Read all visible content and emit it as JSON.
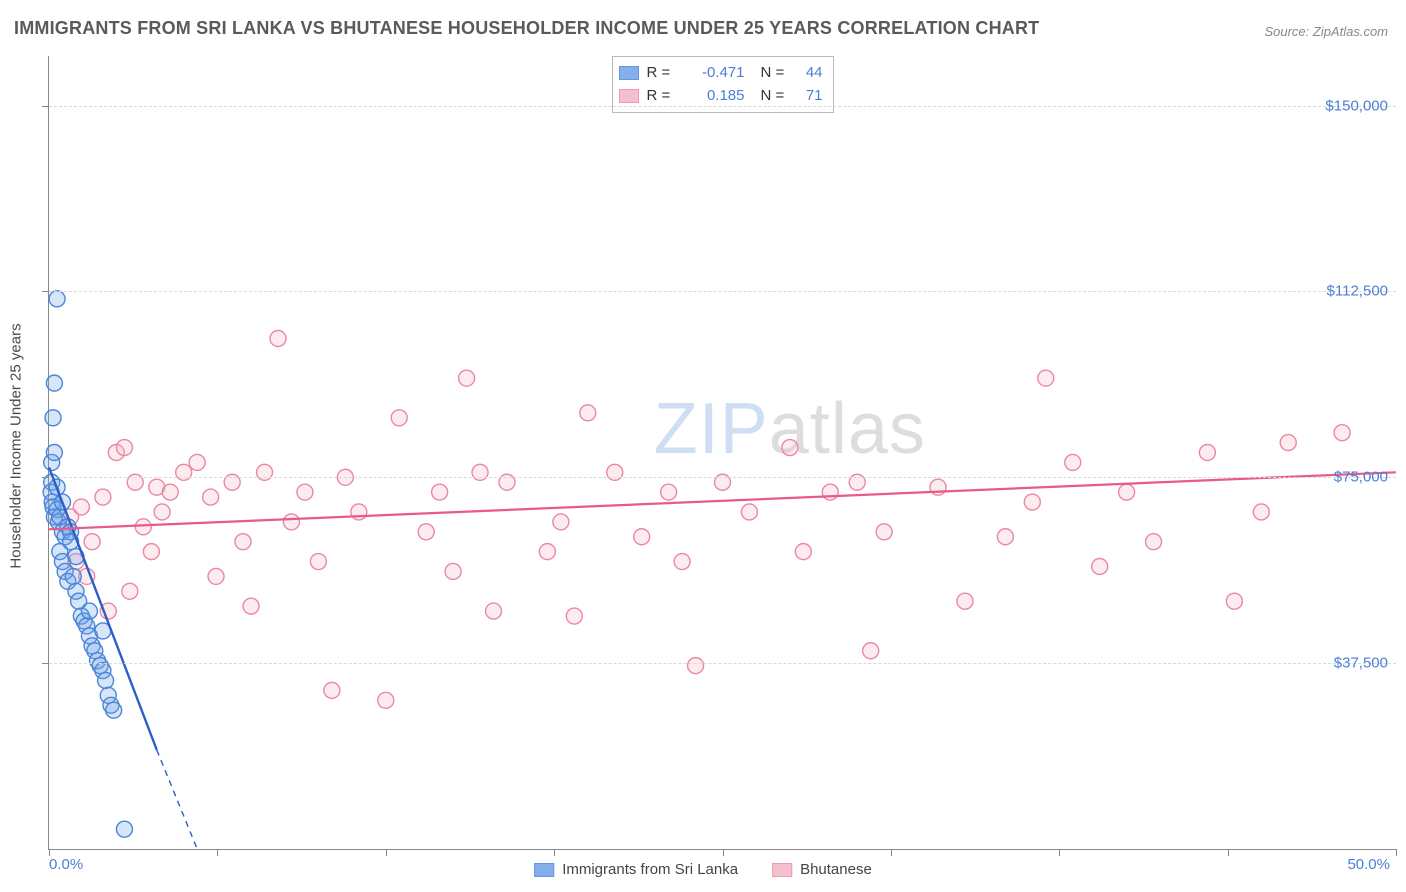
{
  "title": "IMMIGRANTS FROM SRI LANKA VS BHUTANESE HOUSEHOLDER INCOME UNDER 25 YEARS CORRELATION CHART",
  "source": "Source: ZipAtlas.com",
  "yaxis_title": "Householder Income Under 25 years",
  "watermark": {
    "z": "ZIP",
    "rest": "atlas"
  },
  "chart": {
    "type": "scatter",
    "background_color": "#ffffff",
    "grid_color": "#d9d9d9",
    "axis_color": "#888888",
    "label_color": "#4b7ed6",
    "xlim": [
      0,
      50
    ],
    "ylim": [
      0,
      160000
    ],
    "x_tick_step_pct": 12.5,
    "x_tick_count": 8,
    "y_ticks": [
      37500,
      75000,
      112500,
      150000
    ],
    "y_tick_labels": [
      "$37,500",
      "$75,000",
      "$112,500",
      "$150,000"
    ],
    "x_min_label": "0.0%",
    "x_max_label": "50.0%",
    "marker_radius": 8,
    "marker_fill_opacity": 0.28,
    "marker_stroke_width": 1.4,
    "series": [
      {
        "name": "Immigrants from Sri Lanka",
        "color": "#6ea3e8",
        "stroke": "#4a86d8",
        "line_color": "#2b5fc7",
        "line_width": 2.4,
        "R": "-0.471",
        "N": "44",
        "regression": {
          "x1": 0.0,
          "y1": 77000,
          "x2": 4.0,
          "y2": 20000,
          "dashed_to_x": 5.5,
          "dashed_to_y": 0
        },
        "points": [
          [
            0.3,
            111000
          ],
          [
            0.2,
            94000
          ],
          [
            0.15,
            87000
          ],
          [
            0.1,
            78000
          ],
          [
            0.1,
            74000
          ],
          [
            0.08,
            72000
          ],
          [
            0.12,
            70000
          ],
          [
            0.15,
            69000
          ],
          [
            0.2,
            67000
          ],
          [
            0.3,
            68500
          ],
          [
            0.35,
            66000
          ],
          [
            0.4,
            67000
          ],
          [
            0.5,
            64000
          ],
          [
            0.6,
            63000
          ],
          [
            0.7,
            65000
          ],
          [
            0.8,
            64000
          ],
          [
            0.4,
            60000
          ],
          [
            0.5,
            58000
          ],
          [
            0.6,
            56000
          ],
          [
            0.7,
            54000
          ],
          [
            0.9,
            55000
          ],
          [
            1.0,
            52000
          ],
          [
            1.1,
            50000
          ],
          [
            1.2,
            47000
          ],
          [
            1.3,
            46000
          ],
          [
            1.4,
            45000
          ],
          [
            1.5,
            43000
          ],
          [
            1.6,
            41000
          ],
          [
            1.7,
            40000
          ],
          [
            1.8,
            38000
          ],
          [
            1.9,
            37000
          ],
          [
            2.0,
            36000
          ],
          [
            2.1,
            34000
          ],
          [
            2.2,
            31000
          ],
          [
            2.3,
            29000
          ],
          [
            2.4,
            28000
          ],
          [
            2.0,
            44000
          ],
          [
            1.5,
            48000
          ],
          [
            1.0,
            59000
          ],
          [
            0.8,
            62000
          ],
          [
            0.5,
            70000
          ],
          [
            0.3,
            73000
          ],
          [
            0.2,
            80000
          ],
          [
            2.8,
            4000
          ]
        ]
      },
      {
        "name": "Bhutanese",
        "color": "#f4b6c6",
        "stroke": "#ea88a4",
        "line_color": "#e85a88",
        "line_width": 2.2,
        "R": "0.185",
        "N": "71",
        "regression": {
          "x1": 0.0,
          "y1": 64500,
          "x2": 50.0,
          "y2": 76000
        },
        "points": [
          [
            0.8,
            67000
          ],
          [
            1.0,
            58000
          ],
          [
            1.2,
            69000
          ],
          [
            1.4,
            55000
          ],
          [
            1.6,
            62000
          ],
          [
            2.0,
            71000
          ],
          [
            2.2,
            48000
          ],
          [
            2.5,
            80000
          ],
          [
            2.8,
            81000
          ],
          [
            3.0,
            52000
          ],
          [
            3.2,
            74000
          ],
          [
            3.5,
            65000
          ],
          [
            3.8,
            60000
          ],
          [
            4.0,
            73000
          ],
          [
            4.2,
            68000
          ],
          [
            4.5,
            72000
          ],
          [
            5.0,
            76000
          ],
          [
            5.5,
            78000
          ],
          [
            6.0,
            71000
          ],
          [
            6.2,
            55000
          ],
          [
            6.8,
            74000
          ],
          [
            7.2,
            62000
          ],
          [
            7.5,
            49000
          ],
          [
            8.0,
            76000
          ],
          [
            8.5,
            103000
          ],
          [
            9.0,
            66000
          ],
          [
            9.5,
            72000
          ],
          [
            10.0,
            58000
          ],
          [
            10.5,
            32000
          ],
          [
            11.0,
            75000
          ],
          [
            11.5,
            68000
          ],
          [
            12.5,
            30000
          ],
          [
            13.0,
            87000
          ],
          [
            14.0,
            64000
          ],
          [
            14.5,
            72000
          ],
          [
            15.0,
            56000
          ],
          [
            15.5,
            95000
          ],
          [
            16.0,
            76000
          ],
          [
            16.5,
            48000
          ],
          [
            17.0,
            74000
          ],
          [
            18.5,
            60000
          ],
          [
            19.0,
            66000
          ],
          [
            19.5,
            47000
          ],
          [
            20.0,
            88000
          ],
          [
            21.0,
            76000
          ],
          [
            22.0,
            63000
          ],
          [
            23.0,
            72000
          ],
          [
            23.5,
            58000
          ],
          [
            24.0,
            37000
          ],
          [
            25.0,
            74000
          ],
          [
            26.0,
            68000
          ],
          [
            27.5,
            81000
          ],
          [
            28.0,
            60000
          ],
          [
            29.0,
            72000
          ],
          [
            30.0,
            74000
          ],
          [
            30.5,
            40000
          ],
          [
            31.0,
            64000
          ],
          [
            33.0,
            73000
          ],
          [
            34.0,
            50000
          ],
          [
            35.5,
            63000
          ],
          [
            36.5,
            70000
          ],
          [
            37.0,
            95000
          ],
          [
            38.0,
            78000
          ],
          [
            39.0,
            57000
          ],
          [
            40.0,
            72000
          ],
          [
            41.0,
            62000
          ],
          [
            43.0,
            80000
          ],
          [
            45.0,
            68000
          ],
          [
            46.0,
            82000
          ],
          [
            44.0,
            50000
          ],
          [
            48.0,
            84000
          ]
        ]
      }
    ]
  },
  "legend_top_labels": {
    "R": "R =",
    "N": "N ="
  }
}
